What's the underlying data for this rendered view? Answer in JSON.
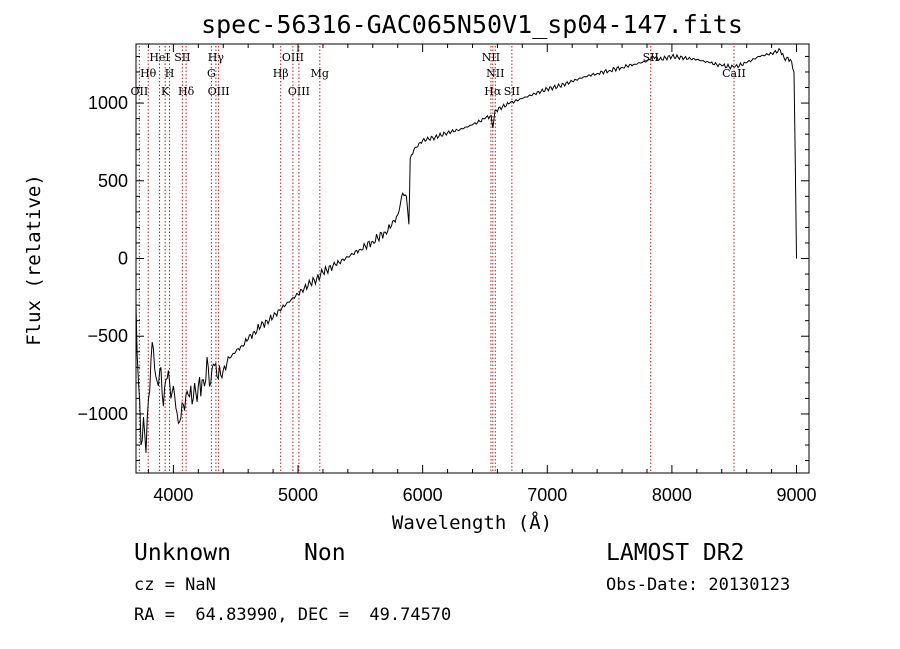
{
  "chart_data": {
    "type": "line",
    "title": "spec-56316-GAC065N50V1_sp04-147.fits",
    "xlabel": "Wavelength (Å)",
    "ylabel": "Flux (relative)",
    "xlim": [
      3700,
      9100
    ],
    "ylim": [
      -1380,
      1380
    ],
    "xticks": [
      4000,
      5000,
      6000,
      7000,
      8000,
      9000
    ],
    "yticks": [
      -1000,
      -500,
      0,
      500,
      1000
    ],
    "grid": false,
    "series": [
      {
        "values_xy": [
          [
            3700,
            -300
          ],
          [
            3720,
            -800
          ],
          [
            3740,
            -1200
          ],
          [
            3760,
            -1020
          ],
          [
            3780,
            -1250
          ],
          [
            3800,
            -900
          ],
          [
            3820,
            -650
          ],
          [
            3840,
            -580
          ],
          [
            3860,
            -760
          ],
          [
            3880,
            -820
          ],
          [
            3900,
            -700
          ],
          [
            3920,
            -950
          ],
          [
            3940,
            -780
          ],
          [
            3960,
            -720
          ],
          [
            3980,
            -900
          ],
          [
            4000,
            -820
          ],
          [
            4040,
            -1060
          ],
          [
            4080,
            -940
          ],
          [
            4120,
            -880
          ],
          [
            4160,
            -900
          ],
          [
            4200,
            -820
          ],
          [
            4240,
            -780
          ],
          [
            4280,
            -700
          ],
          [
            4300,
            -800
          ],
          [
            4320,
            -680
          ],
          [
            4350,
            -760
          ],
          [
            4400,
            -720
          ],
          [
            4450,
            -640
          ],
          [
            4500,
            -600
          ],
          [
            4550,
            -560
          ],
          [
            4600,
            -520
          ],
          [
            4650,
            -470
          ],
          [
            4700,
            -440
          ],
          [
            4750,
            -400
          ],
          [
            4800,
            -380
          ],
          [
            4850,
            -330
          ],
          [
            4900,
            -300
          ],
          [
            4950,
            -260
          ],
          [
            5000,
            -230
          ],
          [
            5050,
            -190
          ],
          [
            5100,
            -160
          ],
          [
            5150,
            -130
          ],
          [
            5200,
            -90
          ],
          [
            5300,
            -40
          ],
          [
            5400,
            10
          ],
          [
            5500,
            60
          ],
          [
            5600,
            110
          ],
          [
            5700,
            170
          ],
          [
            5750,
            210
          ],
          [
            5800,
            280
          ],
          [
            5840,
            420
          ],
          [
            5870,
            400
          ],
          [
            5890,
            220
          ],
          [
            5900,
            640
          ],
          [
            5930,
            700
          ],
          [
            6000,
            760
          ],
          [
            6100,
            780
          ],
          [
            6200,
            810
          ],
          [
            6300,
            830
          ],
          [
            6400,
            860
          ],
          [
            6500,
            900
          ],
          [
            6550,
            920
          ],
          [
            6563,
            840
          ],
          [
            6580,
            950
          ],
          [
            6700,
            1000
          ],
          [
            6800,
            1030
          ],
          [
            6900,
            1060
          ],
          [
            7000,
            1090
          ],
          [
            7100,
            1110
          ],
          [
            7200,
            1140
          ],
          [
            7300,
            1170
          ],
          [
            7400,
            1190
          ],
          [
            7500,
            1210
          ],
          [
            7600,
            1230
          ],
          [
            7700,
            1250
          ],
          [
            7800,
            1270
          ],
          [
            7850,
            1300
          ],
          [
            7900,
            1280
          ],
          [
            8000,
            1300
          ],
          [
            8100,
            1290
          ],
          [
            8200,
            1280
          ],
          [
            8300,
            1260
          ],
          [
            8400,
            1240
          ],
          [
            8500,
            1230
          ],
          [
            8600,
            1260
          ],
          [
            8700,
            1300
          ],
          [
            8800,
            1320
          ],
          [
            8870,
            1340
          ],
          [
            8900,
            1290
          ],
          [
            8950,
            1280
          ],
          [
            8980,
            1200
          ],
          [
            9000,
            0
          ]
        ]
      }
    ],
    "line_markers": [
      {
        "x": 3727,
        "label": "OII",
        "row": 3
      },
      {
        "x": 3798,
        "label": "Hθ",
        "row": 2
      },
      {
        "x": 3889,
        "label": "HeI",
        "row": 1
      },
      {
        "x": 3934,
        "label": "K",
        "row": 3
      },
      {
        "x": 3969,
        "label": "H",
        "row": 2
      },
      {
        "x": 4072,
        "label": "SII",
        "row": 1
      },
      {
        "x": 4102,
        "label": "Hδ",
        "row": 3
      },
      {
        "x": 4305,
        "label": "G",
        "row": 2
      },
      {
        "x": 4341,
        "label": "Hγ",
        "row": 1
      },
      {
        "x": 4363,
        "label": "OIII",
        "row": 3
      },
      {
        "x": 4861,
        "label": "Hβ",
        "row": 2
      },
      {
        "x": 4959,
        "label": "OIII",
        "row": 1
      },
      {
        "x": 5007,
        "label": "OIII",
        "row": 3
      },
      {
        "x": 5175,
        "label": "Mg",
        "row": 2
      },
      {
        "x": 6548,
        "label": "NII",
        "row": 1
      },
      {
        "x": 6563,
        "label": "Hα",
        "row": 3
      },
      {
        "x": 6583,
        "label": "NII",
        "row": 2
      },
      {
        "x": 6716,
        "label": "SII",
        "row": 3
      },
      {
        "x": 7830,
        "label": "SII",
        "row": 1
      },
      {
        "x": 8498,
        "label": "CaII",
        "row": 2
      }
    ]
  },
  "info": {
    "classification": "Unknown",
    "subclass": "Non",
    "survey": "LAMOST DR2",
    "cz": "cz = NaN",
    "obs_date": "Obs-Date: 20130123",
    "coords": "RA =  64.83990, DEC =  49.74570"
  },
  "colors": {
    "spectrum": "#000000",
    "marker_line": "#b22222",
    "text": "#000000"
  }
}
